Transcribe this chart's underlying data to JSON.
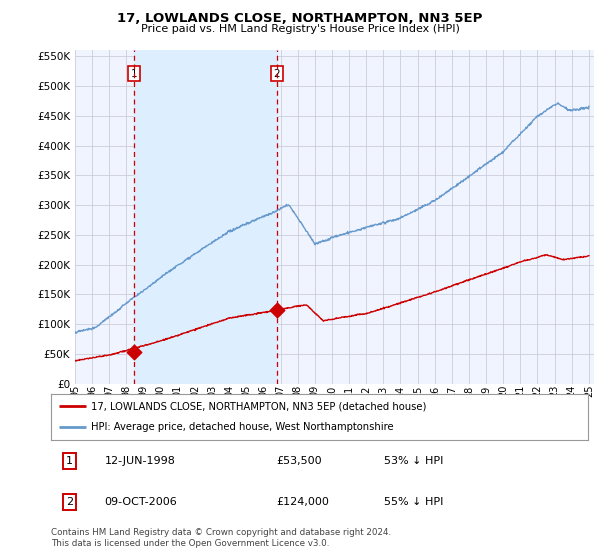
{
  "title": "17, LOWLANDS CLOSE, NORTHAMPTON, NN3 5EP",
  "subtitle": "Price paid vs. HM Land Registry's House Price Index (HPI)",
  "legend_line1": "17, LOWLANDS CLOSE, NORTHAMPTON, NN3 5EP (detached house)",
  "legend_line2": "HPI: Average price, detached house, West Northamptonshire",
  "transaction1_date": "12-JUN-1998",
  "transaction1_price": "£53,500",
  "transaction1_hpi": "53% ↓ HPI",
  "transaction2_date": "09-OCT-2006",
  "transaction2_price": "£124,000",
  "transaction2_hpi": "55% ↓ HPI",
  "footer": "Contains HM Land Registry data © Crown copyright and database right 2024.\nThis data is licensed under the Open Government Licence v3.0.",
  "price_color": "#cc0000",
  "hpi_color": "#6699cc",
  "vline_color": "#cc0000",
  "shade_color": "#ddeeff",
  "background_color": "#ffffff",
  "plot_bg_color": "#f0f4ff",
  "grid_color": "#ccccdd",
  "ylim_min": 0,
  "ylim_max": 560000
}
